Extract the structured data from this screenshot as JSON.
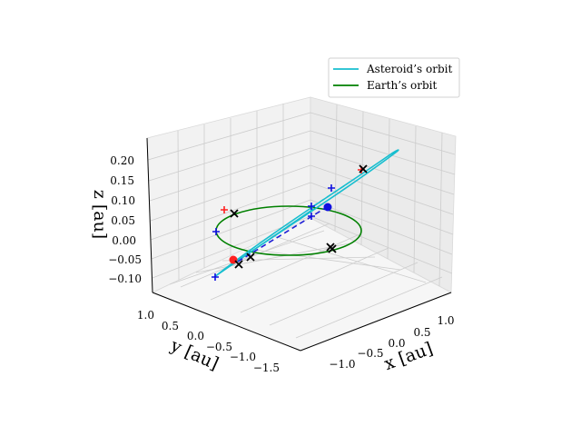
{
  "chart_data": {
    "type": "line",
    "projection": "3d",
    "title": "",
    "xlabel": "x [au]",
    "ylabel": "y [au]",
    "zlabel": "z [au]",
    "x_ticks": [
      "−1.0",
      "−0.5",
      "0.0",
      "0.5",
      "1.0"
    ],
    "y_ticks": [
      "1.0",
      "0.5",
      "0.0",
      "−0.5",
      "−1.0",
      "−1.5"
    ],
    "z_ticks": [
      "0.20",
      "0.15",
      "0.10",
      "0.05",
      "0.00",
      "−0.05",
      "−0.10"
    ],
    "legend_position": "top-right",
    "grid": true,
    "series": [
      {
        "name": "Asteroid’s orbit",
        "color": "#17becf"
      },
      {
        "name": "Earth’s orbit",
        "color": "#008000"
      }
    ],
    "markers": {
      "red_points": 1,
      "blue_points": 1,
      "blue_plus_count": 5,
      "red_plus_count": 2,
      "black_x_count": 6
    }
  }
}
